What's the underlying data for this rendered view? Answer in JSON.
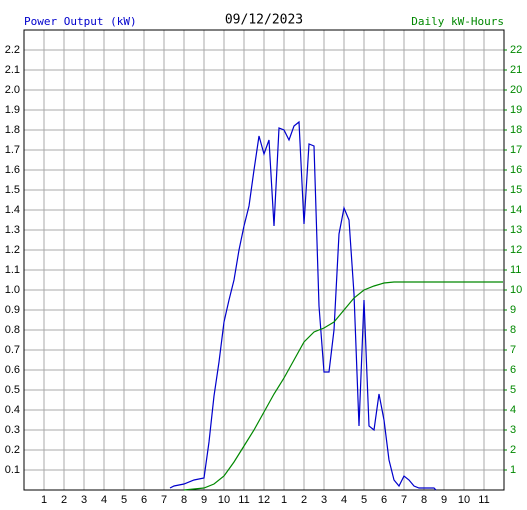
{
  "chart_data": {
    "type": "line",
    "title": "09/12/2023",
    "ylabel": "Power Output (kW)",
    "y2label": "Daily kW-Hours",
    "grid": true,
    "xlim": [
      0,
      24
    ],
    "xticks": [
      1,
      2,
      3,
      4,
      5,
      6,
      7,
      8,
      9,
      10,
      11,
      12,
      {
        "value": 13,
        "label": "1"
      },
      {
        "value": 14,
        "label": "2"
      },
      {
        "value": 15,
        "label": "3"
      },
      {
        "value": 16,
        "label": "4"
      },
      {
        "value": 17,
        "label": "5"
      },
      {
        "value": 18,
        "label": "6"
      },
      {
        "value": 19,
        "label": "7"
      },
      {
        "value": 20,
        "label": "8"
      },
      {
        "value": 21,
        "label": "9"
      },
      {
        "value": 22,
        "label": "10"
      },
      {
        "value": 23,
        "label": "11"
      }
    ],
    "ylim": [
      0,
      2.3
    ],
    "yticks": [
      0.1,
      0.2,
      0.3,
      0.4,
      0.5,
      0.6,
      0.7,
      0.8,
      0.9,
      {
        "value": 1,
        "label": "1.0"
      },
      1.1,
      1.2,
      1.3,
      1.4,
      1.5,
      1.6,
      1.7,
      1.8,
      1.9,
      {
        "value": 2,
        "label": "2.0"
      },
      2.1,
      2.2
    ],
    "y2lim": [
      0,
      23
    ],
    "y2ticks": [
      1,
      2,
      3,
      4,
      5,
      6,
      7,
      8,
      9,
      10,
      11,
      12,
      13,
      14,
      15,
      16,
      17,
      18,
      19,
      20,
      21,
      22
    ],
    "series": [
      {
        "color": "#0000cc",
        "axis": "y",
        "x": [
          7.3,
          7.5,
          8,
          8.5,
          9,
          9.25,
          9.5,
          9.75,
          10,
          10.25,
          10.5,
          10.75,
          11,
          11.25,
          11.5,
          11.75,
          12,
          12.25,
          12.5,
          12.75,
          13,
          13.25,
          13.5,
          13.75,
          14,
          14.25,
          14.5,
          14.75,
          15,
          15.25,
          15.5,
          15.75,
          16,
          16.25,
          16.5,
          16.75,
          17,
          17.25,
          17.5,
          17.75,
          18,
          18.25,
          18.5,
          18.75,
          19,
          19.25,
          19.5,
          19.75,
          20,
          20.5,
          20.6
        ],
        "values": [
          0.01,
          0.02,
          0.03,
          0.05,
          0.06,
          0.24,
          0.47,
          0.64,
          0.84,
          0.95,
          1.05,
          1.2,
          1.32,
          1.42,
          1.6,
          1.77,
          1.68,
          1.75,
          1.32,
          1.81,
          1.8,
          1.75,
          1.82,
          1.84,
          1.33,
          1.73,
          1.72,
          0.92,
          0.59,
          0.59,
          0.8,
          1.28,
          1.41,
          1.35,
          0.98,
          0.32,
          0.95,
          0.32,
          0.3,
          0.48,
          0.35,
          0.15,
          0.05,
          0.02,
          0.07,
          0.05,
          0.02,
          0.01,
          0.01,
          0.01,
          0
        ]
      },
      {
        "color": "#008800",
        "axis": "y2",
        "x": [
          8,
          8.5,
          9,
          9.5,
          10,
          10.5,
          11,
          11.5,
          12,
          12.5,
          13,
          13.5,
          14,
          14.5,
          15,
          15.5,
          16,
          16.5,
          17,
          17.5,
          18,
          18.5,
          19,
          23.95
        ],
        "values": [
          0,
          0.05,
          0.1,
          0.3,
          0.7,
          1.4,
          2.2,
          3.0,
          3.9,
          4.8,
          5.6,
          6.5,
          7.4,
          7.9,
          8.1,
          8.4,
          9.0,
          9.6,
          10.0,
          10.2,
          10.35,
          10.4,
          10.4,
          10.4
        ]
      }
    ]
  }
}
